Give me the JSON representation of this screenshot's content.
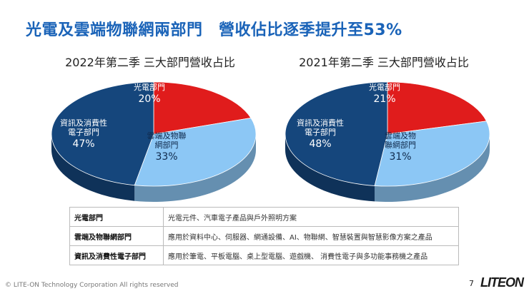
{
  "page": {
    "title": "光電及雲端物聯網兩部門　營收佔比逐季提升至53%",
    "footer": "© LITE-ON Technology Corporation All rights reserved",
    "page_number": "7",
    "logo_text": "LITEON"
  },
  "colors": {
    "optoelectronics": "#e01c1c",
    "cloud_iot": "#8cc7f5",
    "consumer": "#15467c",
    "title": "#1a63b8"
  },
  "chart_data": [
    {
      "type": "pie",
      "title": "2022年第二季 三大部門營收占比",
      "slices": [
        {
          "name": "光電部門",
          "value": 20,
          "label": "20%",
          "color_key": "optoelectronics"
        },
        {
          "name": "雲端及物聯網部門",
          "value": 33,
          "label": "33%",
          "color_key": "cloud_iot"
        },
        {
          "name": "資訊及消費性電子部門",
          "value": 47,
          "label": "47%",
          "color_key": "consumer"
        }
      ]
    },
    {
      "type": "pie",
      "title": "2021年第二季 三大部門營收占比",
      "slices": [
        {
          "name": "光電部門",
          "value": 21,
          "label": "21%",
          "color_key": "optoelectronics"
        },
        {
          "name": "雲端及物聯網部門",
          "value": 31,
          "label": "31%",
          "color_key": "cloud_iot"
        },
        {
          "name": "資訊及消費性電子部門",
          "value": 48,
          "label": "48%",
          "color_key": "consumer"
        }
      ]
    }
  ],
  "table": {
    "rows": [
      {
        "dept": "光電部門",
        "desc": "光電元件、汽車電子產品與戶外照明方案"
      },
      {
        "dept": "雲端及物聯網部門",
        "desc": "應用於資料中心、伺服器、網通設備、AI、物聯網、智慧裝置與智慧影像方案之產品"
      },
      {
        "dept": "資訊及消費性電子部門",
        "desc": "應用於筆電、平板電腦、桌上型電腦、遊戲機、 消費性電子與多功能事務機之產品"
      }
    ]
  }
}
